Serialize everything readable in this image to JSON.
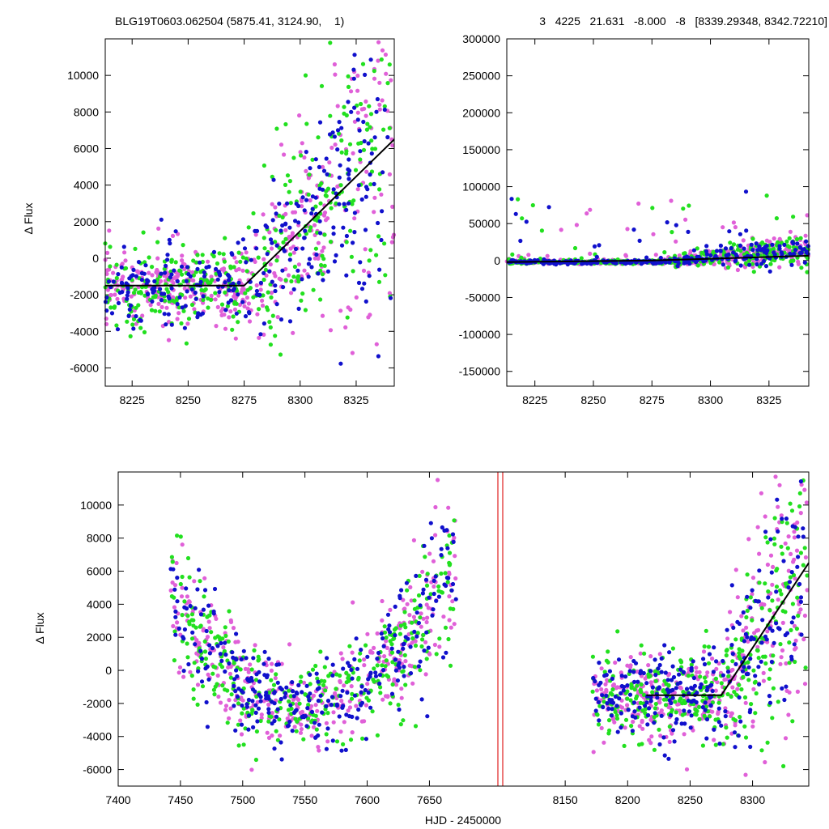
{
  "header": {
    "left": "BLG19T0603.062504 (5875.41, 3124.90,    1)",
    "right": "3   4225   21.631   -8.000   -8   [8339.29348, 8342.72210]"
  },
  "colors": {
    "magenta": "#e060d8",
    "green": "#22e01f",
    "blue": "#1010cc",
    "model": "#000000",
    "marker": "#e02020"
  },
  "chart_data": [
    {
      "type": "scatter",
      "panel": "top-left",
      "title": "",
      "xlabel": "",
      "ylabel": "Δ Flux",
      "xlim": [
        8213,
        8342
      ],
      "ylim": [
        -7000,
        12000
      ],
      "xticks": [
        8225,
        8250,
        8275,
        8300,
        8325
      ],
      "yticks": [
        -6000,
        -4000,
        -2000,
        0,
        2000,
        4000,
        6000,
        8000,
        10000
      ],
      "series": [
        {
          "color": "magenta"
        },
        {
          "color": "green"
        },
        {
          "color": "blue"
        }
      ],
      "model_line": [
        [
          8213,
          -1500
        ],
        [
          8275,
          -1500
        ],
        [
          8342,
          6500
        ]
      ]
    },
    {
      "type": "scatter",
      "panel": "top-right",
      "title": "",
      "xlabel": "",
      "ylabel": "",
      "xlim": [
        8213,
        8342
      ],
      "ylim": [
        -170000,
        300000
      ],
      "xticks": [
        8225,
        8250,
        8275,
        8300,
        8325
      ],
      "yticks": [
        -150000,
        -100000,
        -50000,
        0,
        50000,
        100000,
        150000,
        200000,
        250000,
        300000
      ],
      "series": [
        {
          "color": "magenta"
        },
        {
          "color": "green"
        },
        {
          "color": "blue"
        }
      ],
      "model_line": [
        [
          8213,
          -2000
        ],
        [
          8275,
          0
        ],
        [
          8342,
          6500
        ]
      ]
    },
    {
      "type": "scatter",
      "panel": "bottom",
      "title": "",
      "xlabel": "HJD - 2450000",
      "ylabel": "Δ Flux",
      "ylim": [
        -7000,
        12000
      ],
      "segments": [
        {
          "xlim": [
            7400,
            7705
          ],
          "xticks": [
            7400,
            7450,
            7500,
            7550,
            7600,
            7650
          ]
        },
        {
          "xlim": [
            8100,
            8345
          ],
          "xticks": [
            8150,
            8200,
            8250,
            8300
          ]
        }
      ],
      "yticks": [
        -6000,
        -4000,
        -2000,
        0,
        2000,
        4000,
        6000,
        8000,
        10000
      ],
      "series": [
        {
          "color": "magenta"
        },
        {
          "color": "green"
        },
        {
          "color": "blue"
        }
      ],
      "model_line": [
        [
          8215,
          -1500
        ],
        [
          8275,
          -1500
        ],
        [
          8345,
          6500
        ]
      ]
    }
  ]
}
